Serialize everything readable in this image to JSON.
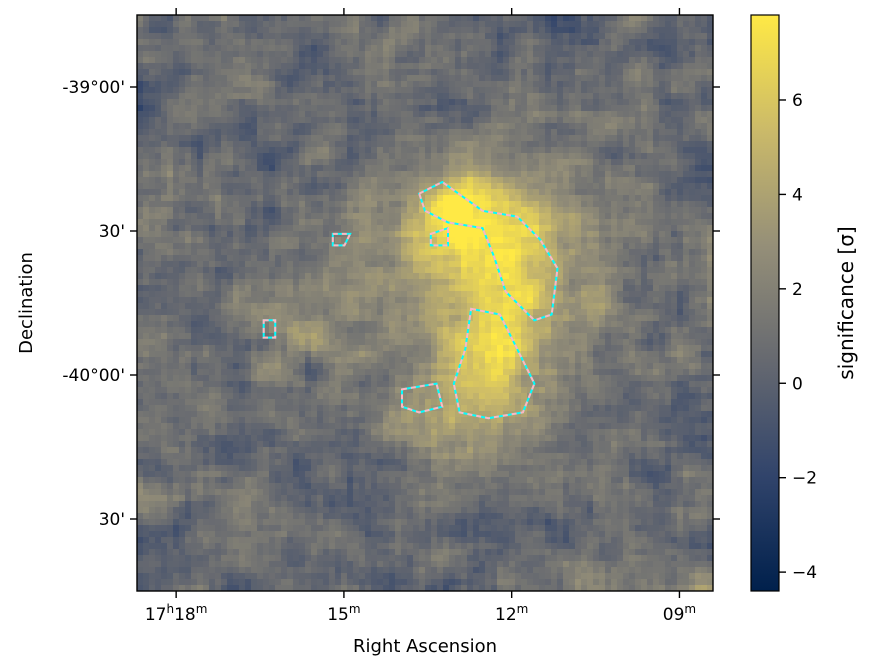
{
  "chart_data": {
    "type": "heatmap",
    "title": "",
    "xlabel": "Right Ascension",
    "ylabel": "Declination",
    "x_ticks": [
      {
        "h": "17",
        "hs": "h",
        "m": "18",
        "ms": "m"
      },
      {
        "h": "",
        "hs": "",
        "m": "15",
        "ms": "m"
      },
      {
        "h": "",
        "hs": "",
        "m": "12",
        "ms": "m"
      },
      {
        "h": "",
        "hs": "",
        "m": "09",
        "ms": "m"
      }
    ],
    "y_ticks": [
      "-39°00'",
      "30'",
      "-40°00'",
      "30'"
    ],
    "x_tick_minutes": [
      18,
      15,
      12,
      9
    ],
    "y_tick_degrees": [
      -39.0,
      -39.5,
      -40.0,
      -40.5
    ],
    "ra_range_minutes": [
      18.7,
      8.4
    ],
    "dec_range_degrees": [
      -38.75,
      -40.75
    ],
    "colorbar": {
      "label": "significance [σ]",
      "range": [
        -4.4,
        7.8
      ],
      "ticks": [
        -4,
        -2,
        0,
        2,
        4,
        6
      ],
      "tick_labels": [
        "−4",
        "−2",
        "0",
        "2",
        "4",
        "6"
      ],
      "colormap": "cividis",
      "colors": [
        "#00204c",
        "#31446b",
        "#666970",
        "#958f78",
        "#cbba69",
        "#ffe945"
      ]
    },
    "contours": [
      {
        "level": "high",
        "color": "#00ffff",
        "style": "solid"
      },
      {
        "level": "high",
        "color": "#ffb6c1",
        "style": "dashed"
      }
    ],
    "grid": false,
    "legend": "none"
  }
}
